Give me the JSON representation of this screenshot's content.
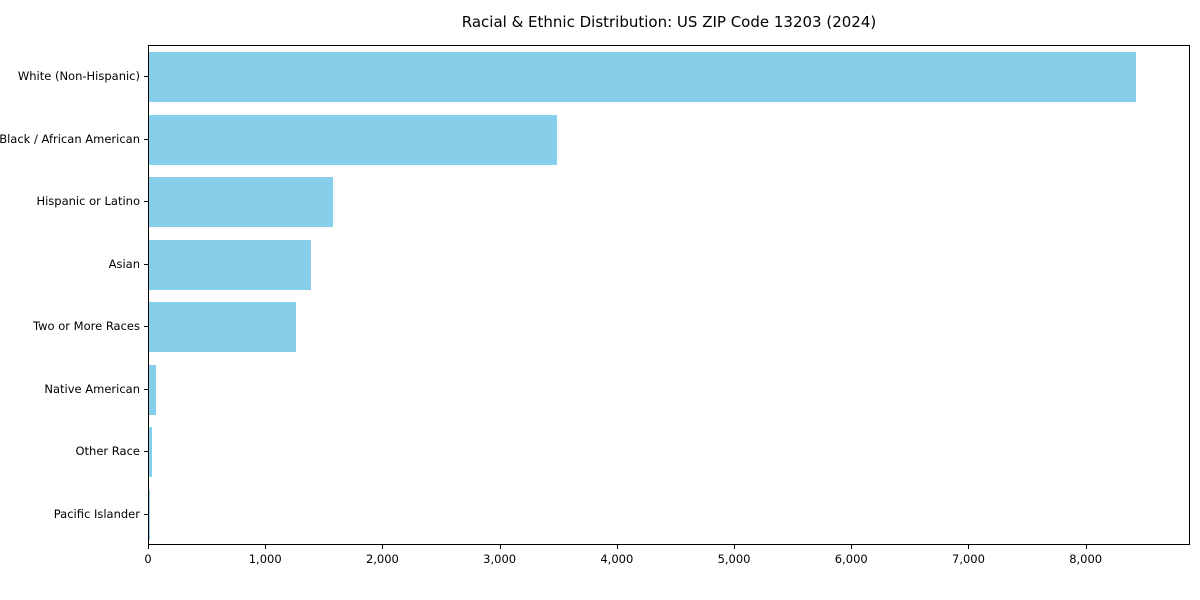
{
  "chart_data": {
    "type": "bar",
    "orientation": "horizontal",
    "title": "Racial & Ethnic Distribution: US ZIP Code 13203 (2024)",
    "categories": [
      "White (Non-Hispanic)",
      "Black / African American",
      "Hispanic or Latino",
      "Asian",
      "Two or More Races",
      "Native American",
      "Other Race",
      "Pacific Islander"
    ],
    "values": [
      8420,
      3480,
      1570,
      1380,
      1250,
      60,
      25,
      8
    ],
    "xlabel": "",
    "ylabel": "",
    "xlim": [
      0,
      8890
    ],
    "x_ticks": [
      0,
      1000,
      2000,
      3000,
      4000,
      5000,
      6000,
      7000,
      8000
    ],
    "x_tick_labels": [
      "0",
      "1,000",
      "2,000",
      "3,000",
      "4,000",
      "5,000",
      "6,000",
      "7,000",
      "8,000"
    ],
    "bar_color": "#87CEEB",
    "grid": false,
    "legend": null
  }
}
